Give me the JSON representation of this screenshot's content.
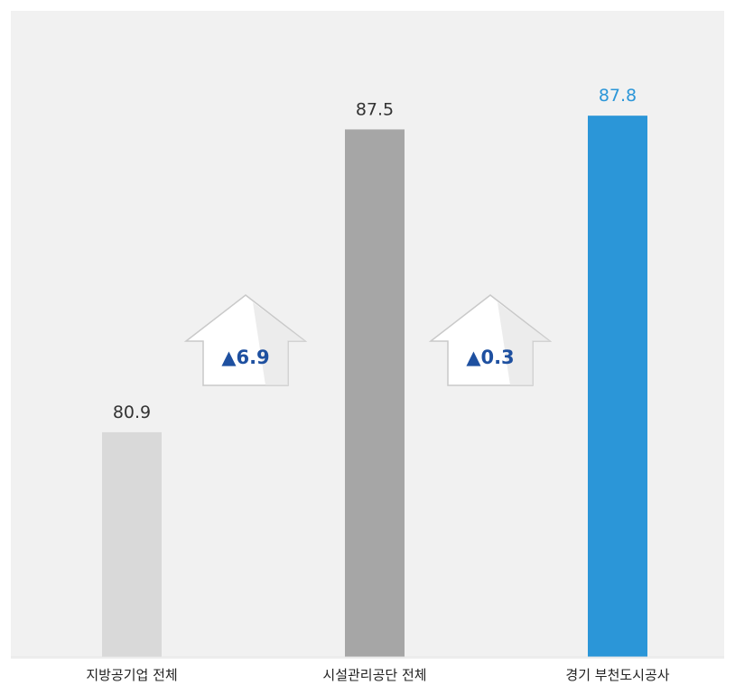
{
  "chart_data": {
    "type": "bar",
    "categories": [
      "지방공기업 전체",
      "시설관리공단 전체",
      "경기 부천도시공사"
    ],
    "values": [
      80.9,
      87.5,
      87.8
    ],
    "value_labels": [
      "80.9",
      "87.5",
      "87.8"
    ],
    "colors": [
      "#d9d9d9",
      "#a6a6a6",
      "#2b96d8"
    ],
    "value_label_colors": [
      "#333333",
      "#333333",
      "#2b96d8"
    ],
    "ylim": [
      76,
      88
    ],
    "grid": false,
    "title": "",
    "xlabel": "",
    "ylabel": "",
    "annotations": [
      {
        "between": [
          0,
          1
        ],
        "text": "▲6.9"
      },
      {
        "between": [
          1,
          2
        ],
        "text": "▲0.3"
      }
    ]
  }
}
